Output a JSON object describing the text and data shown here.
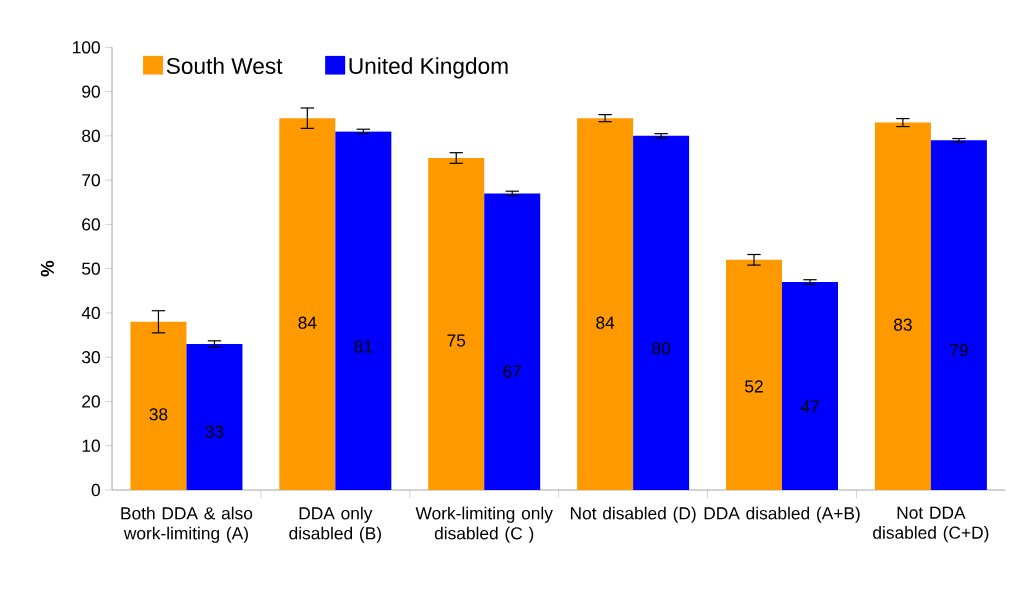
{
  "chart_data": {
    "type": "bar",
    "ylabel": "%",
    "categories": [
      "Both DDA & also work-limiting (A)",
      "DDA only disabled (B)",
      "Work-limiting only disabled (C )",
      "Not disabled (D)",
      "DDA disabled (A+B)",
      "Not DDA disabled (C+D)"
    ],
    "series": [
      {
        "name": "South West",
        "color": "#ff9900",
        "values": [
          38,
          84,
          75,
          84,
          52,
          83
        ],
        "errors": [
          2.5,
          2.3,
          1.2,
          0.8,
          1.2,
          0.9
        ]
      },
      {
        "name": "United Kingdom",
        "color": "#0000ff",
        "values": [
          33,
          81,
          67,
          80,
          47,
          79
        ],
        "errors": [
          0.7,
          0.5,
          0.5,
          0.5,
          0.5,
          0.4
        ]
      }
    ],
    "ylim": [
      0,
      100
    ],
    "yticks": [
      0,
      10,
      20,
      30,
      40,
      50,
      60,
      70,
      80,
      90,
      100
    ],
    "data_labels": true,
    "legend": "top left",
    "grid": false
  }
}
